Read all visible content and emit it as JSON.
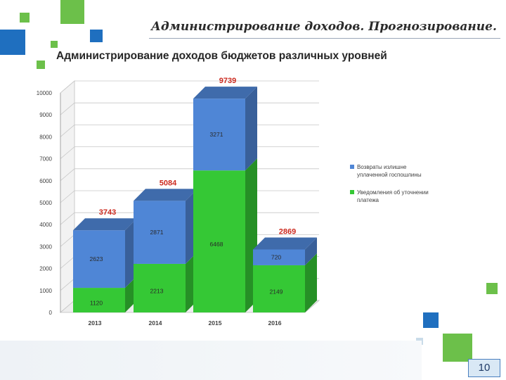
{
  "header": {
    "title": "Администрирование доходов. Прогнозирование."
  },
  "page": {
    "number": "10"
  },
  "colors": {
    "series_bottom": "#35c835",
    "series_top": "#4f86d6",
    "total_label": "#cc2a1f",
    "accent_green": "#6cc04a",
    "accent_blue": "#1f6fbf"
  },
  "chart_data": {
    "type": "bar",
    "stacked": true,
    "three_d": true,
    "title": "Администрирование доходов бюджетов различных уровней",
    "xlabel": "",
    "ylabel": "",
    "categories": [
      "2013",
      "2014",
      "2015",
      "2016"
    ],
    "ylim": [
      0,
      10000
    ],
    "yticks": [
      0,
      1000,
      2000,
      3000,
      4000,
      5000,
      6000,
      7000,
      8000,
      9000,
      10000
    ],
    "grid": true,
    "legend_position": "right",
    "series": [
      {
        "name": "Уведомления об уточнении платежа",
        "values": [
          1120,
          2213,
          6468,
          2149
        ]
      },
      {
        "name": "Возвраты излишне уплаченной госпошлины",
        "values": [
          2623,
          2871,
          3271,
          720
        ]
      }
    ],
    "totals": [
      3743,
      5084,
      9739,
      2869
    ]
  }
}
